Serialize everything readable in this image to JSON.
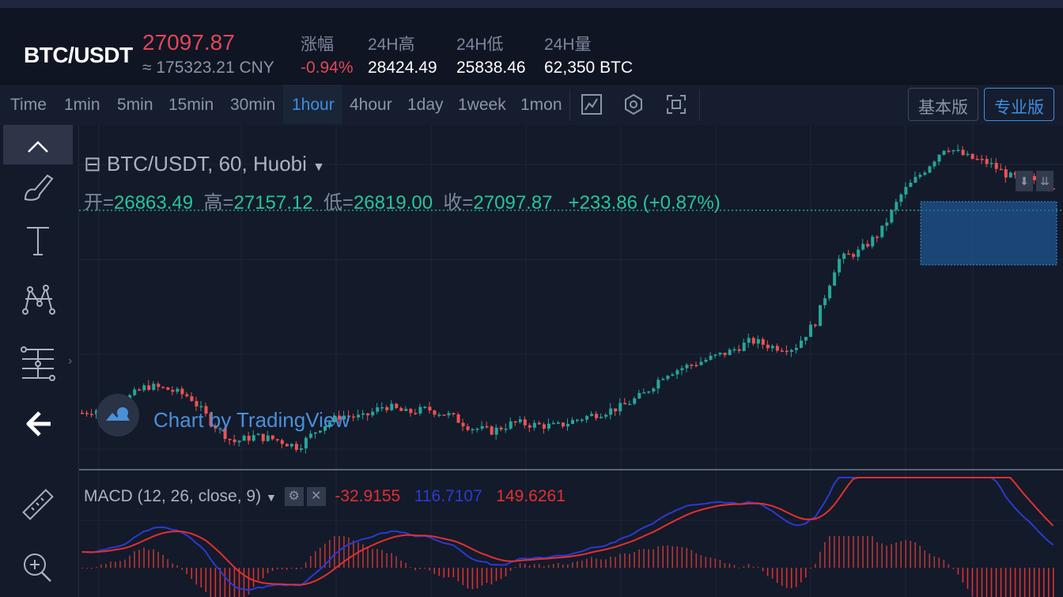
{
  "header": {
    "pair": "BTC/USDT",
    "last_price": "27097.87",
    "cny_price": "≈ 175323.21 CNY",
    "stats": [
      {
        "label": "涨幅",
        "value": "-0.94%"
      },
      {
        "label": "24H高",
        "value": "28424.49"
      },
      {
        "label": "24H低",
        "value": "25838.46"
      },
      {
        "label": "24H量",
        "value": "62,350 BTC"
      }
    ]
  },
  "toolbar": {
    "intervals": [
      "Time",
      "1min",
      "5min",
      "15min",
      "30min",
      "1hour",
      "4hour",
      "1day",
      "1week",
      "1mon"
    ],
    "active_interval": "1hour",
    "icons": [
      "indicator-icon",
      "settings-icon",
      "fullscreen-icon"
    ],
    "version_buttons": [
      "基本版",
      "专业版"
    ],
    "active_version": "专业版"
  },
  "sidebar": {
    "tools": [
      "crosshair-icon",
      "brush-icon",
      "text-icon",
      "pattern-icon",
      "fib-icon",
      "back-arrow-icon",
      "ruler-icon",
      "zoom-in-icon"
    ]
  },
  "legend": {
    "title": "BTC/USDT, 60, Huobi",
    "open_label": "开=",
    "open": "26863.49",
    "high_label": "高=",
    "high": "27157.12",
    "low_label": "低=",
    "low": "26819.00",
    "close_label": "收=",
    "close": "27097.87",
    "change": "+233.86 (+0.87%)"
  },
  "watermark": "Chart by TradingView",
  "macd": {
    "label": "MACD (12, 26, close, 9)",
    "value1": "-32.9155",
    "value2": "116.7107",
    "value3": "149.6261"
  },
  "colors": {
    "up": "#26a69a",
    "down": "#ef5350",
    "accent": "#3d8fe0",
    "price_red": "#e2465a",
    "macd_line": "#2b3ad0",
    "signal_line": "#e23030"
  },
  "chart_data": {
    "type": "candlestick",
    "pair": "BTC/USDT",
    "interval": "60",
    "exchange": "Huobi",
    "last": {
      "open": 26863.49,
      "high": 27157.12,
      "low": 26819.0,
      "close": 27097.87
    },
    "trend_path": [
      26200,
      26240,
      26310,
      26420,
      26390,
      26330,
      26120,
      25960,
      26010,
      25980,
      25920,
      26080,
      26180,
      26160,
      26260,
      26200,
      26230,
      26180,
      26080,
      26050,
      26120,
      26100,
      26090,
      26150,
      26200,
      26250,
      26350,
      26520,
      26580,
      26640,
      26700,
      26790,
      26740,
      26730,
      26950,
      27450,
      27520,
      27680,
      28000,
      28180,
      28380,
      28290,
      28240,
      28130,
      28110,
      28060
    ],
    "y_range": [
      25838.46,
      28424.49
    ]
  }
}
